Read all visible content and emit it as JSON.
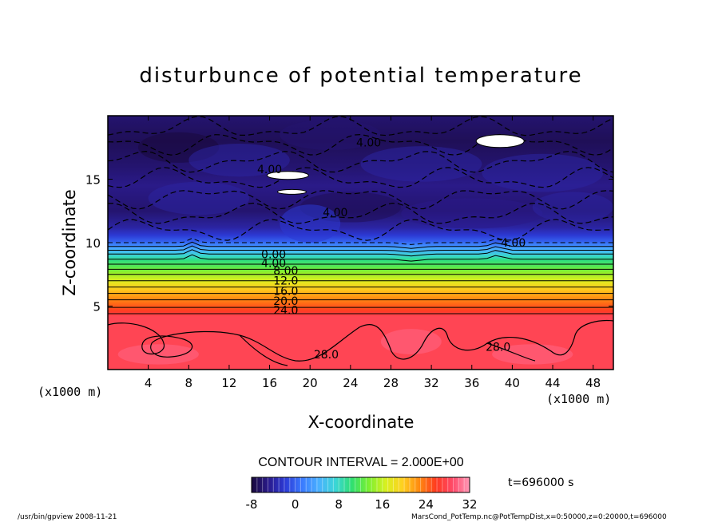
{
  "chart_data": {
    "type": "heatmap",
    "title": "disturbunce of potential temperature",
    "xlabel": "X-coordinate",
    "ylabel": "Z-coordinate",
    "x_unit": "(x1000 m)",
    "y_unit": "(x1000 m)",
    "xlim": [
      0,
      50
    ],
    "ylim": [
      0,
      20
    ],
    "xticks": [
      4,
      8,
      12,
      16,
      20,
      24,
      28,
      32,
      36,
      40,
      44,
      48
    ],
    "yticks": [
      5,
      10,
      15
    ],
    "contour_interval": "CONTOUR INTERVAL = 2.000E+00",
    "time_label": "t=696000 s",
    "colorbar": {
      "min": -8,
      "max": 32,
      "ticks": [
        -8,
        0,
        8,
        16,
        24,
        32
      ],
      "colors": [
        "#1a0a3e",
        "#2a1a8a",
        "#2c3ad6",
        "#3a7aff",
        "#4ab0ff",
        "#3ad6d6",
        "#30e070",
        "#7cf030",
        "#d8f020",
        "#ffd020",
        "#ff8a10",
        "#ff3a20",
        "#ff4a6a",
        "#ff9ab8"
      ]
    },
    "vertical_profile": [
      {
        "z": 0,
        "value": 28
      },
      {
        "z": 4.2,
        "value": 28
      },
      {
        "z": 4.6,
        "value": 26
      },
      {
        "z": 5.2,
        "value": 24
      },
      {
        "z": 5.8,
        "value": 22
      },
      {
        "z": 6.3,
        "value": 20
      },
      {
        "z": 6.8,
        "value": 18
      },
      {
        "z": 7.2,
        "value": 16
      },
      {
        "z": 7.7,
        "value": 14
      },
      {
        "z": 8.1,
        "value": 12
      },
      {
        "z": 8.6,
        "value": 10
      },
      {
        "z": 8.9,
        "value": 8
      },
      {
        "z": 9.2,
        "value": 6
      },
      {
        "z": 9.5,
        "value": 4
      },
      {
        "z": 9.8,
        "value": 2
      },
      {
        "z": 10.1,
        "value": 0
      },
      {
        "z": 10.6,
        "value": -2
      },
      {
        "z": 11.2,
        "value": -4
      },
      {
        "z": 12.5,
        "value": -6
      },
      {
        "z": 14.5,
        "value": -5
      },
      {
        "z": 16.0,
        "value": -6
      },
      {
        "z": 18.0,
        "value": -7
      },
      {
        "z": 20.0,
        "value": -6
      }
    ],
    "contour_labels": [
      {
        "text": "0.00",
        "x": 16.4,
        "z": 9.1
      },
      {
        "text": "4.00",
        "x": 16.4,
        "z": 8.4
      },
      {
        "text": "8.00",
        "x": 17.6,
        "z": 7.8
      },
      {
        "text": "12.0",
        "x": 17.6,
        "z": 7.0
      },
      {
        "text": "16.0",
        "x": 17.6,
        "z": 6.2
      },
      {
        "text": "20.0",
        "x": 17.6,
        "z": 5.4
      },
      {
        "text": "24.0",
        "x": 17.6,
        "z": 4.7
      },
      {
        "text": "28.0",
        "x": 21.6,
        "z": 1.2
      },
      {
        "text": "28.0",
        "x": 38.6,
        "z": 1.8
      },
      {
        "text": "4.00",
        "x": 25.8,
        "z": 17.9
      },
      {
        "text": "4.00",
        "x": 16.0,
        "z": 15.8
      },
      {
        "text": "4.00",
        "x": 22.5,
        "z": 12.4
      },
      {
        "text": "4.00",
        "x": 40.1,
        "z": 10.0
      }
    ],
    "white_patches": [
      {
        "x": 38.8,
        "z": 18.0
      },
      {
        "x": 17.8,
        "z": 15.3
      },
      {
        "x": 18.2,
        "z": 14.0
      }
    ]
  },
  "footer": {
    "left": "/usr/bin/gpview   2008-11-21",
    "right": "MarsCond_PotTemp.nc@PotTempDist,x=0:50000,z=0:20000,t=696000"
  }
}
